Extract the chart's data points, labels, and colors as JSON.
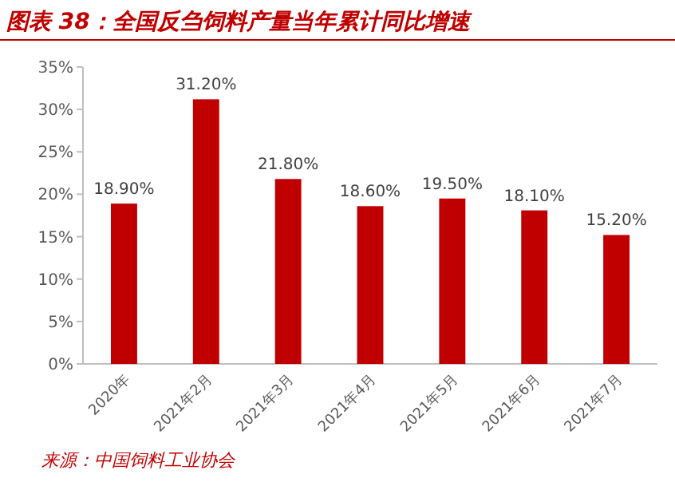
{
  "chart_data": {
    "type": "bar",
    "title": "图表 38：全国反刍饲料产量当年累计同比增速",
    "categories": [
      "2020年",
      "2021年2月",
      "2021年3月",
      "2021年4月",
      "2021年5月",
      "2021年6月",
      "2021年7月"
    ],
    "values": [
      18.9,
      31.2,
      21.8,
      18.6,
      19.5,
      18.1,
      15.2
    ],
    "value_labels": [
      "18.90%",
      "31.20%",
      "21.80%",
      "18.60%",
      "19.50%",
      "18.10%",
      "15.20%"
    ],
    "color": "#c00000",
    "ylim": [
      0,
      35
    ],
    "yticks": [
      {
        "value": 0,
        "label": "0%"
      },
      {
        "value": 5,
        "label": "5%"
      },
      {
        "value": 10,
        "label": "10%"
      },
      {
        "value": 15,
        "label": "15%"
      },
      {
        "value": 20,
        "label": "20%"
      },
      {
        "value": 25,
        "label": "25%"
      },
      {
        "value": 30,
        "label": "30%"
      },
      {
        "value": 35,
        "label": "35%"
      }
    ],
    "annotations": [
      "来源：中国饲料工业协会"
    ]
  }
}
